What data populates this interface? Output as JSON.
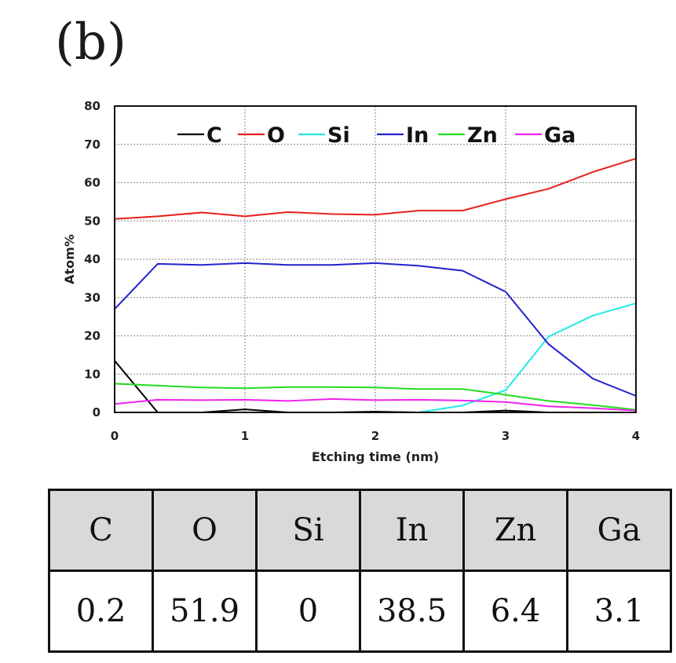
{
  "panel_label": "(b)",
  "chart_data": {
    "type": "line",
    "xlabel": "Etching time (nm)",
    "ylabel": "Atom%",
    "xlim": [
      0,
      4
    ],
    "ylim": [
      0,
      80
    ],
    "xticks": [
      0,
      1,
      2,
      3,
      4
    ],
    "yticks": [
      0,
      10,
      20,
      30,
      40,
      50,
      60,
      70,
      80
    ],
    "grid": true,
    "legend_position": "top",
    "x": [
      0,
      0.33,
      0.67,
      1,
      1.33,
      1.67,
      2,
      2.33,
      2.67,
      3,
      3.33,
      3.67,
      4
    ],
    "series": [
      {
        "name": "C",
        "color": "#000000",
        "values": [
          13.5,
          0,
          0,
          0.8,
          0,
          0,
          0.2,
          0,
          0,
          0.5,
          0,
          0,
          0
        ]
      },
      {
        "name": "O",
        "color": "#e8201c",
        "values": [
          50.5,
          51.2,
          52.2,
          51.2,
          52.3,
          51.8,
          51.6,
          52.7,
          52.7,
          55.7,
          58.4,
          62.8,
          66.3
        ]
      },
      {
        "name": "Si",
        "color": "#22e8e8",
        "values": [
          0,
          0,
          0,
          0,
          0,
          0,
          0,
          0,
          1.8,
          5.8,
          19.8,
          25.3,
          28.5
        ]
      },
      {
        "name": "In",
        "color": "#2222cc",
        "values": [
          27,
          38.8,
          38.5,
          39,
          38.5,
          38.5,
          39,
          38.3,
          37,
          31.5,
          17.8,
          8.8,
          4.3
        ]
      },
      {
        "name": "Zn",
        "color": "#22dd22",
        "values": [
          7.5,
          7.0,
          6.5,
          6.3,
          6.6,
          6.6,
          6.5,
          6.1,
          6.1,
          4.6,
          3.0,
          1.9,
          0.7
        ]
      },
      {
        "name": "Ga",
        "color": "#ee22ee",
        "values": [
          2.2,
          3.3,
          3.2,
          3.3,
          3.0,
          3.5,
          3.2,
          3.3,
          3.1,
          2.7,
          1.6,
          1.1,
          0.5
        ]
      }
    ]
  },
  "table": {
    "headers": [
      "C",
      "O",
      "Si",
      "In",
      "Zn",
      "Ga"
    ],
    "values": [
      "0.2",
      "51.9",
      "0",
      "38.5",
      "6.4",
      "3.1"
    ]
  }
}
